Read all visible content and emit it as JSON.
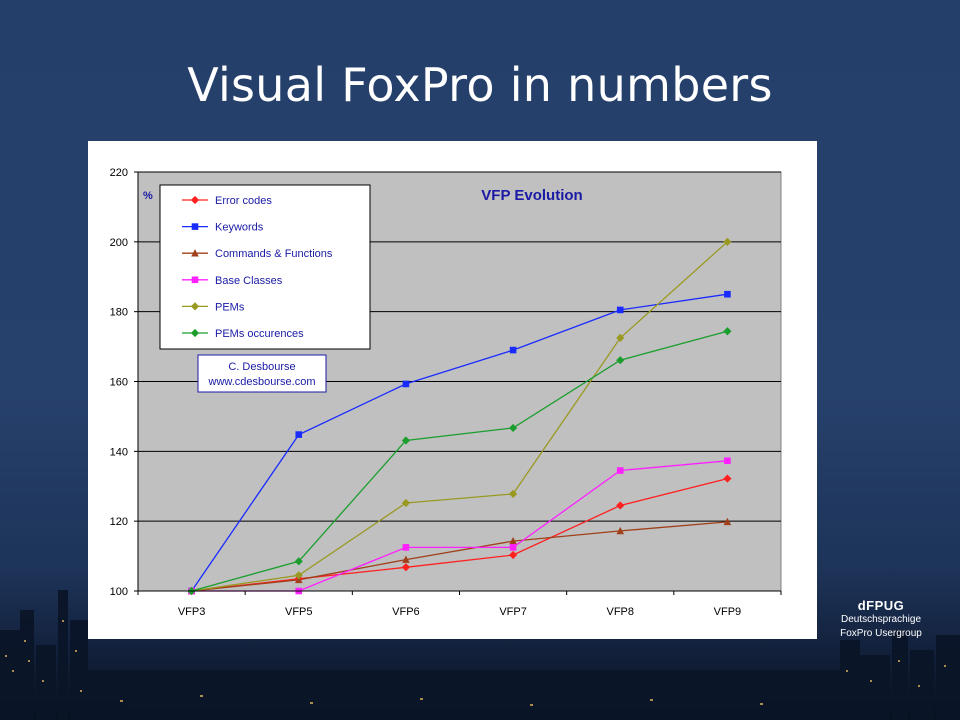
{
  "slide": {
    "title": "Visual FoxPro in numbers",
    "brand": {
      "name": "dFPUG",
      "line1": "Deutschsprachige",
      "line2": "FoxPro Usergroup"
    }
  },
  "chart_data": {
    "type": "line",
    "title": "VFP Evolution",
    "ylabel": "%",
    "xlabel": "",
    "categories": [
      "VFP3",
      "VFP5",
      "VFP6",
      "VFP7",
      "VFP8",
      "VFP9"
    ],
    "ylim": [
      100,
      220
    ],
    "yticks": [
      100,
      120,
      140,
      160,
      180,
      200,
      220
    ],
    "grid": true,
    "legend_position": "top-left",
    "plot_background": "#c0c0c0",
    "series": [
      {
        "name": "Error codes",
        "color": "#ff2020",
        "marker": "diamond",
        "values": [
          100,
          103.5,
          106.8,
          110.3,
          124.5,
          132.2
        ]
      },
      {
        "name": "Keywords",
        "color": "#1a2bff",
        "marker": "square",
        "values": [
          100,
          144.8,
          159.3,
          169,
          180.5,
          185
        ]
      },
      {
        "name": "Commands & Functions",
        "color": "#a0401a",
        "marker": "triangle",
        "values": [
          100,
          103.2,
          109,
          114.3,
          117.2,
          119.8
        ]
      },
      {
        "name": "Base Classes",
        "color": "#ff20ff",
        "marker": "square",
        "values": [
          100,
          100,
          112.5,
          112.5,
          134.5,
          137.3
        ]
      },
      {
        "name": "PEMs",
        "color": "#999922",
        "marker": "diamond",
        "values": [
          100,
          104.5,
          125.2,
          127.8,
          172.5,
          200
        ]
      },
      {
        "name": "PEMs occurences",
        "color": "#1b9e2e",
        "marker": "diamond",
        "values": [
          100,
          108.5,
          143.1,
          146.7,
          166.1,
          174.4
        ]
      }
    ],
    "annotation": {
      "line1": "C. Desbourse",
      "line2": "www.cdesbourse.com"
    }
  }
}
